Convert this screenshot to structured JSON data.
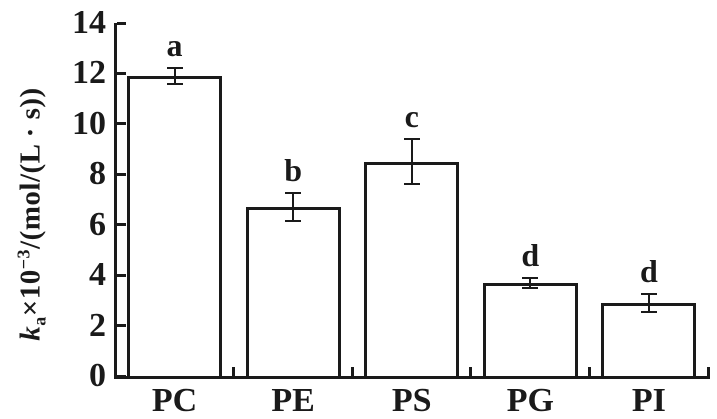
{
  "figure": {
    "background": "#ffffff",
    "ink_color": "#1a1a1a"
  },
  "chart_data": {
    "type": "bar",
    "title": "",
    "categories": [
      "PC",
      "PE",
      "PS",
      "PG",
      "PI"
    ],
    "values": [
      11.9,
      6.7,
      8.5,
      3.7,
      2.9
    ],
    "error_bars": [
      0.3,
      0.55,
      0.9,
      0.2,
      0.35
    ],
    "significance_letters": [
      "a",
      "b",
      "c",
      "d",
      "d"
    ],
    "y_ticks": [
      0,
      2,
      4,
      6,
      8,
      10,
      12,
      14
    ],
    "ylim": [
      0,
      14
    ],
    "xlabel": "",
    "ylabel_plain": "ka×10−3/(mol/(L · s))",
    "ylabel_parts": {
      "k_italic": "k",
      "k_subscript": "a",
      "times_factor": "×10",
      "exponent": "−3",
      "unit": "/(mol/(L · s))"
    },
    "grid": false,
    "legend": null,
    "bar_fill": "#ffffff",
    "bar_edge": "#1a1a1a"
  }
}
